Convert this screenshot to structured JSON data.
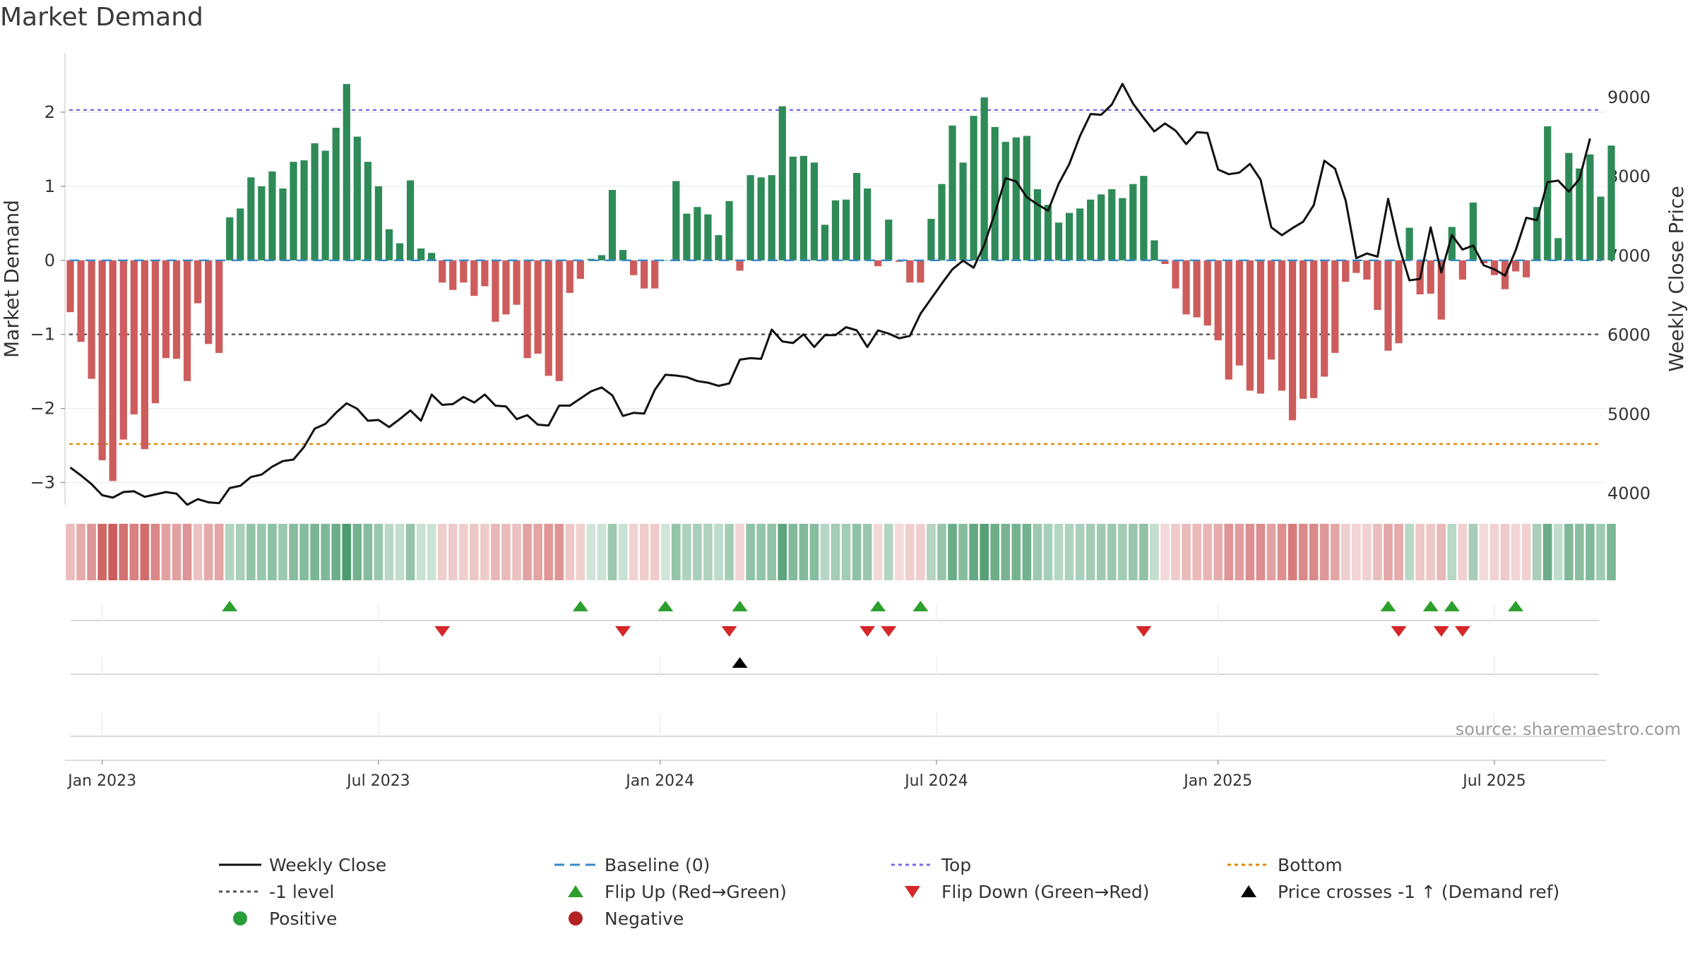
{
  "title": "Market Demand",
  "source": "source: sharemaestro.com",
  "colors": {
    "positive": "#2e8b57",
    "negative": "#cd5c5c",
    "close": "#111111",
    "baseline": "#3a87c8",
    "top": "#7b68ee",
    "bottom": "#e08a00",
    "level": "#555555",
    "flip_up": "#2ca02c",
    "flip_down": "#d62728",
    "cross": "#000000",
    "positive_dot": "#2a9d3a",
    "negative_dot": "#b22222"
  },
  "chart_data": {
    "type": "bar+line",
    "title": "Market Demand",
    "ylabel_left": "Market Demand",
    "ylabel_right": "Weekly Close Price",
    "ylim_left": [
      -3.3,
      2.8
    ],
    "ylim_right": [
      3850,
      9550
    ],
    "yticks_left": [
      2,
      1,
      0,
      -1,
      -2,
      -3
    ],
    "ytick_labels_left": [
      "2",
      "1",
      "0",
      "−1",
      "−2",
      "−3"
    ],
    "yticks_right": [
      9000,
      8000,
      7000,
      6000,
      5000,
      4000
    ],
    "ytick_labels_right": [
      "9000",
      "8000",
      "7000",
      "6000",
      "5000",
      "4000"
    ],
    "x_ticks": [
      {
        "week": 3,
        "label": "Jan 2023"
      },
      {
        "week": 29,
        "label": "Jul 2023"
      },
      {
        "week": 55.5,
        "label": "Jan 2024"
      },
      {
        "week": 81.5,
        "label": "Jul 2024"
      },
      {
        "week": 108,
        "label": "Jan 2025"
      },
      {
        "week": 134,
        "label": "Jul 2025"
      }
    ],
    "n_weeks": 145,
    "reference_lines": {
      "top": 2.03,
      "bottom": -2.48,
      "level": -1,
      "baseline": 0
    },
    "demand": [
      -0.7,
      -1.1,
      -1.6,
      -2.7,
      -2.98,
      -2.42,
      -2.08,
      -2.55,
      -1.93,
      -1.32,
      -1.33,
      -1.63,
      -0.58,
      -1.13,
      -1.25,
      0.58,
      0.7,
      1.12,
      1.0,
      1.2,
      0.97,
      1.33,
      1.35,
      1.58,
      1.48,
      1.79,
      2.38,
      1.67,
      1.33,
      1.0,
      0.42,
      0.23,
      1.08,
      0.16,
      0.1,
      -0.3,
      -0.4,
      -0.3,
      -0.48,
      -0.35,
      -0.83,
      -0.73,
      -0.6,
      -1.32,
      -1.26,
      -1.56,
      -1.63,
      -0.44,
      -0.25,
      0.02,
      0.07,
      0.95,
      0.14,
      -0.2,
      -0.38,
      -0.38,
      0.0,
      1.07,
      0.63,
      0.72,
      0.62,
      0.34,
      0.8,
      -0.14,
      1.15,
      1.12,
      1.15,
      2.08,
      1.4,
      1.41,
      1.32,
      0.48,
      0.81,
      0.82,
      1.18,
      0.97,
      -0.08,
      0.55,
      -0.02,
      -0.3,
      -0.3,
      0.56,
      1.03,
      1.82,
      1.32,
      1.95,
      2.2,
      1.8,
      1.6,
      1.66,
      1.68,
      0.96,
      0.75,
      0.51,
      0.64,
      0.7,
      0.82,
      0.89,
      0.96,
      0.84,
      1.03,
      1.14,
      0.27,
      -0.05,
      -0.38,
      -0.73,
      -0.77,
      -0.88,
      -1.08,
      -1.61,
      -1.42,
      -1.76,
      -1.8,
      -1.34,
      -1.76,
      -2.16,
      -1.87,
      -1.86,
      -1.57,
      -1.25,
      -0.29,
      -0.17,
      -0.26,
      -0.67,
      -1.22,
      -1.12,
      0.44,
      -0.46,
      -0.45,
      -0.8,
      0.45,
      -0.26,
      0.78,
      -0.04,
      -0.2,
      -0.39,
      -0.15,
      -0.23,
      0.72,
      1.81,
      0.3,
      1.45,
      1.24,
      1.43,
      0.86,
      1.55
    ],
    "close": [
      4320,
      4220,
      4110,
      3970,
      3940,
      4010,
      4020,
      3950,
      3980,
      4010,
      3990,
      3850,
      3920,
      3880,
      3870,
      4060,
      4090,
      4200,
      4230,
      4330,
      4400,
      4420,
      4580,
      4810,
      4870,
      5010,
      5130,
      5060,
      4910,
      4920,
      4830,
      4930,
      5040,
      4910,
      5240,
      5110,
      5120,
      5210,
      5140,
      5240,
      5100,
      5090,
      4930,
      4980,
      4860,
      4850,
      5100,
      5100,
      5190,
      5280,
      5330,
      5230,
      4970,
      5010,
      5000,
      5300,
      5490,
      5480,
      5460,
      5410,
      5390,
      5350,
      5380,
      5680,
      5700,
      5690,
      6060,
      5910,
      5890,
      6000,
      5840,
      5990,
      5990,
      6090,
      6050,
      5840,
      6050,
      6010,
      5950,
      5980,
      6260,
      6450,
      6640,
      6820,
      6930,
      6840,
      7130,
      7530,
      7970,
      7930,
      7730,
      7640,
      7560,
      7900,
      8150,
      8500,
      8780,
      8770,
      8900,
      9160,
      8910,
      8730,
      8560,
      8660,
      8570,
      8400,
      8550,
      8540,
      8080,
      8020,
      8040,
      8150,
      7950,
      7350,
      7250,
      7340,
      7420,
      7630,
      8190,
      8090,
      7690,
      6960,
      7020,
      6980,
      7710,
      7120,
      6680,
      6700,
      7350,
      6780,
      7250,
      7070,
      7120,
      6870,
      6820,
      6740,
      7060,
      7470,
      7440,
      7920,
      7940,
      7800,
      7960,
      8470
    ]
  },
  "flip_up_weeks": [
    15,
    48,
    56,
    63,
    76,
    80,
    124,
    128,
    130,
    136
  ],
  "flip_down_weeks": [
    35,
    52,
    62,
    75,
    77,
    101,
    125,
    129,
    131
  ],
  "cross_weeks": [
    63
  ],
  "legend": [
    {
      "key": "close",
      "label": "Weekly Close"
    },
    {
      "key": "baseline",
      "label": "Baseline (0)"
    },
    {
      "key": "top",
      "label": "Top"
    },
    {
      "key": "bottom",
      "label": "Bottom"
    },
    {
      "key": "level",
      "label": "-1 level"
    },
    {
      "key": "flip_up",
      "label": "Flip Up (Red→Green)"
    },
    {
      "key": "flip_down",
      "label": "Flip Down (Green→Red)"
    },
    {
      "key": "cross",
      "label": "Price crosses -1 ↑ (Demand ref)"
    },
    {
      "key": "positive_dot",
      "label": "Positive"
    },
    {
      "key": "negative_dot",
      "label": "Negative"
    }
  ]
}
